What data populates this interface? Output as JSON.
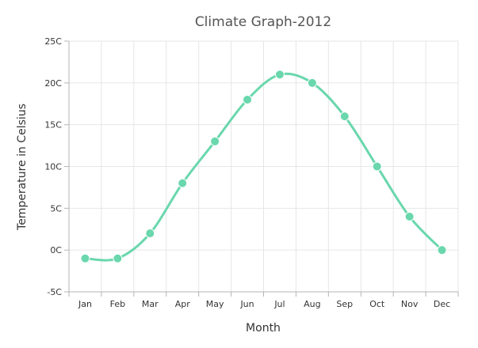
{
  "chart_data": {
    "type": "line",
    "title": "Climate Graph-2012",
    "xlabel": "Month",
    "ylabel": "Temperature in Celsius",
    "categories": [
      "Jan",
      "Feb",
      "Mar",
      "Apr",
      "May",
      "Jun",
      "Jul",
      "Aug",
      "Sep",
      "Oct",
      "Nov",
      "Dec"
    ],
    "series": [
      {
        "values": [
          -1,
          -1,
          2,
          8,
          13,
          18,
          21,
          20,
          16,
          10,
          4,
          0
        ],
        "color": "#6ad7ad"
      }
    ],
    "ylim": [
      -5,
      25
    ],
    "yticks": [
      -5,
      0,
      5,
      10,
      15,
      20,
      25
    ],
    "ytick_labels": [
      "-5C",
      "0C",
      "5C",
      "10C",
      "15C",
      "20C",
      "25C"
    ],
    "grid": true,
    "smooth": true,
    "markers": true
  }
}
